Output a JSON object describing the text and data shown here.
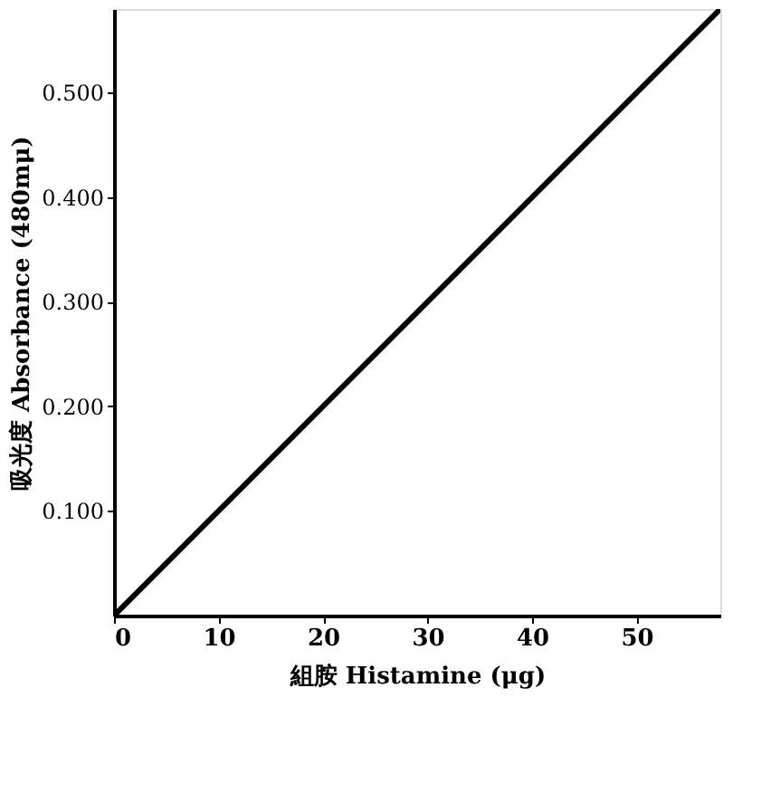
{
  "chart_data": {
    "type": "line",
    "x": [
      0,
      10,
      20,
      30,
      40,
      50,
      58
    ],
    "values": [
      0,
      0.1,
      0.2,
      0.3,
      0.4,
      0.5,
      0.58
    ],
    "color": "#000000",
    "xlabel": "組胺 Histamine (μg)",
    "ylabel": "吸光度 Absorbance (480mμ)",
    "xlim": [
      0,
      58
    ],
    "ylim": [
      0,
      0.58
    ],
    "xticks": [
      0,
      10,
      20,
      30,
      40,
      50
    ],
    "yticks": [
      {
        "value": 0.1,
        "label": "0.100"
      },
      {
        "value": 0.2,
        "label": "0.200"
      },
      {
        "value": 0.3,
        "label": "0.300"
      },
      {
        "value": 0.4,
        "label": "0.400"
      },
      {
        "value": 0.5,
        "label": "0.500"
      }
    ],
    "grid": false,
    "marker": "none",
    "line_style": "solid"
  }
}
